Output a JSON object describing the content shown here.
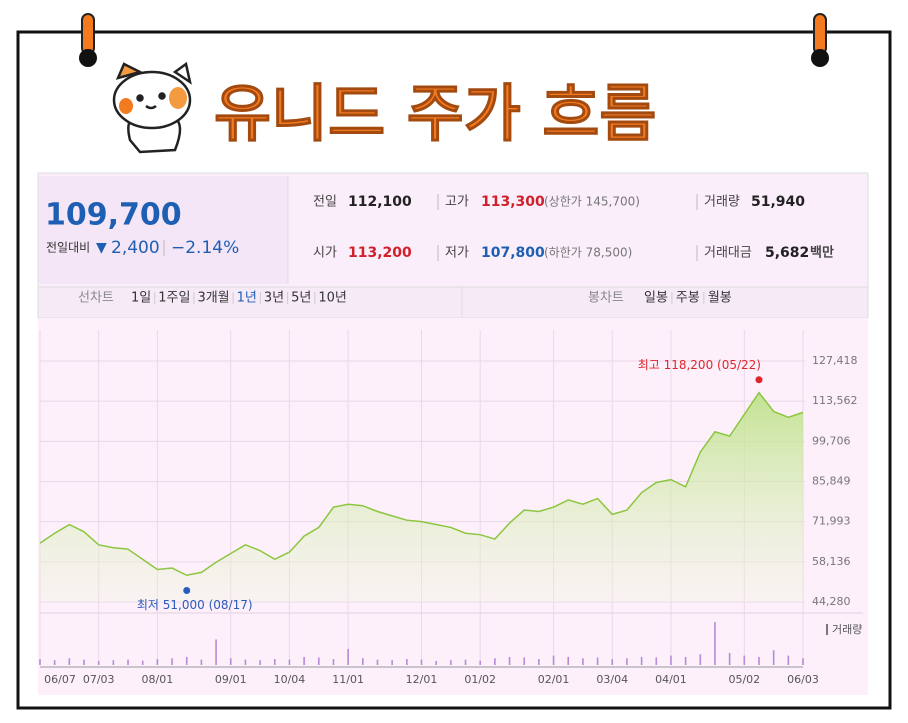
{
  "header": {
    "title": "유니드 주가 흐름"
  },
  "quote": {
    "price": "109,700",
    "change_label": "전일대비",
    "change_arrow": "▼",
    "change": "2,400",
    "change_pct": "−2.14%",
    "items": [
      {
        "label": "전일",
        "value": "112,100"
      },
      {
        "label": "고가",
        "value": "113,300",
        "note": "(상한가 145,700)"
      },
      {
        "label": "거래량",
        "value": "51,940"
      },
      {
        "label": "시가",
        "value": "113,200"
      },
      {
        "label": "저가",
        "value": "107,800",
        "note": "(하한가 78,500)"
      },
      {
        "label": "거래대금",
        "value": "5,682",
        "unit": "백만"
      }
    ]
  },
  "tabs": {
    "line_label": "선차트",
    "periods": [
      "1일",
      "1주일",
      "3개월",
      "1년",
      "3년",
      "5년",
      "10년"
    ],
    "active_period": 3,
    "candle_label": "봉차트",
    "candles": [
      "일봉",
      "주봉",
      "월봉"
    ]
  },
  "chart_data": {
    "type": "area",
    "color": "#8cc63f",
    "categories": [
      "06/07",
      null,
      null,
      null,
      "07/03",
      null,
      null,
      null,
      "08/01",
      null,
      null,
      null,
      null,
      "09/01",
      null,
      null,
      null,
      "10/04",
      null,
      null,
      null,
      "11/01",
      null,
      null,
      null,
      null,
      "12/01",
      null,
      null,
      null,
      "01/02",
      null,
      null,
      null,
      null,
      "02/01",
      null,
      null,
      null,
      "03/04",
      null,
      null,
      null,
      "04/01",
      null,
      null,
      null,
      null,
      "05/02",
      null,
      null,
      null,
      "06/03"
    ],
    "values": [
      64600,
      68000,
      71000,
      68500,
      64000,
      63000,
      62500,
      59000,
      55500,
      56000,
      53500,
      54500,
      58000,
      61000,
      64000,
      62000,
      59000,
      61500,
      67000,
      70000,
      77000,
      78000,
      77500,
      75500,
      74000,
      72500,
      72000,
      71000,
      70000,
      68000,
      67500,
      66000,
      71500,
      76000,
      75500,
      77000,
      79500,
      78000,
      80000,
      74500,
      76000,
      82000,
      85500,
      86500,
      84000,
      96000,
      103000,
      101500,
      109000,
      116500,
      110000,
      108000,
      109700
    ],
    "volume_label": "거래량",
    "volume_color": "#b58ad6",
    "volume": [
      22,
      18,
      25,
      20,
      15,
      18,
      20,
      16,
      22,
      25,
      30,
      20,
      95,
      25,
      20,
      18,
      22,
      20,
      30,
      28,
      22,
      60,
      25,
      20,
      18,
      22,
      20,
      15,
      18,
      20,
      16,
      25,
      30,
      28,
      22,
      35,
      30,
      25,
      28,
      22,
      25,
      30,
      28,
      35,
      30,
      40,
      160,
      45,
      35,
      30,
      55,
      35,
      25
    ],
    "ylim": [
      44280,
      127418
    ],
    "yticks": [
      {
        "value": 44280,
        "label": "44,280"
      },
      {
        "value": 58136,
        "label": "58,136"
      },
      {
        "value": 71993,
        "label": "71,993"
      },
      {
        "value": 85849,
        "label": "85,849"
      },
      {
        "value": 99706,
        "label": "99,706"
      },
      {
        "value": 113562,
        "label": "113,562"
      },
      {
        "value": 127418,
        "label": "127,418"
      }
    ],
    "grid": true,
    "high": {
      "text": "최고 118,200 (05/22)",
      "value": 118200,
      "color": "#e0262b"
    },
    "low": {
      "text": "최저 51,000 (08/17)",
      "value": 51000,
      "color": "#2a5bbf"
    }
  }
}
